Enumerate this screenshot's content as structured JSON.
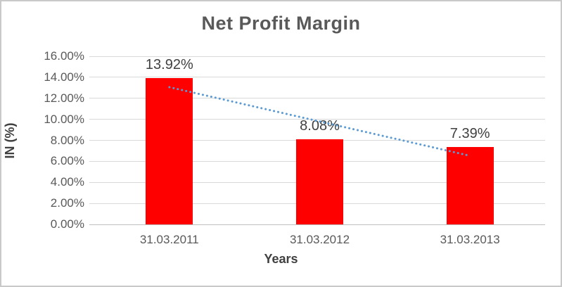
{
  "chart_data": {
    "type": "bar",
    "title": "Net Profit Margin",
    "categories": [
      "31.03.2011",
      "31.03.2012",
      "31.03.2013"
    ],
    "values": [
      13.92,
      8.08,
      7.39
    ],
    "data_labels": [
      "13.92%",
      "8.08%",
      "7.39%"
    ],
    "xlabel": "Years",
    "ylabel": "IN (%)",
    "ylim": [
      0,
      16
    ],
    "y_tick_labels": [
      "0.00%",
      "2.00%",
      "4.00%",
      "6.00%",
      "8.00%",
      "10.00%",
      "12.00%",
      "14.00%",
      "16.00%"
    ],
    "grid": true,
    "legend": "none",
    "bar_color": "#ff0000",
    "title_color": "#595959",
    "tick_color": "#595959",
    "gridline_color": "#d9d9d9",
    "border_color": "#c9c9c9",
    "trendline": {
      "type": "linear",
      "style": "dotted",
      "color": "#5b9bd5",
      "start": {
        "category_index": 0,
        "value": 13.06
      },
      "end": {
        "category_index": 2,
        "value": 6.53
      }
    }
  }
}
